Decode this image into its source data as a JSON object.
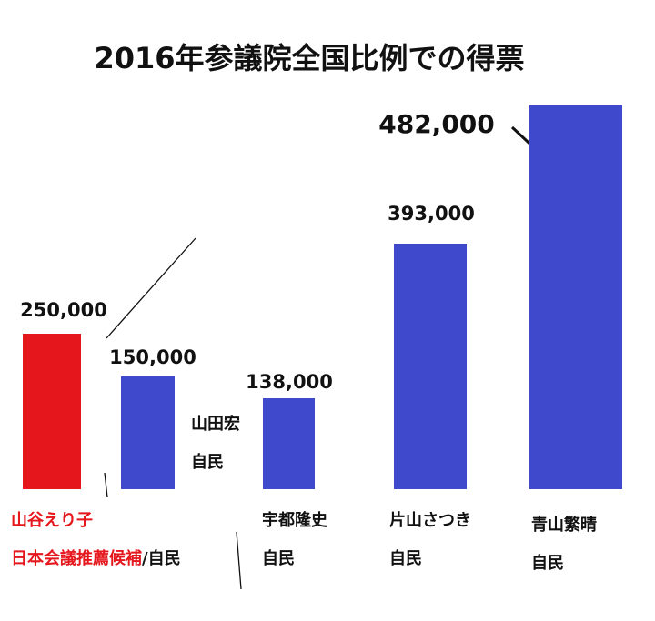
{
  "chart_data": {
    "type": "bar",
    "title": "2016年参議院全国比例での得票",
    "categories": [
      "山谷えり子",
      "山田宏",
      "宇都隆史",
      "片山さつき",
      "青山繁晴"
    ],
    "values": [
      250000,
      150000,
      138000,
      393000,
      482000
    ],
    "value_labels": [
      "250,000",
      "150,000",
      "138,000",
      "393,000",
      "482,000"
    ],
    "party_labels": [
      "日本会議推薦候補",
      "自民",
      "自民",
      "自民",
      "自民"
    ],
    "party_suffix": "/自民",
    "colors": [
      "#e5161c",
      "#3e49cc",
      "#3e49cc",
      "#3e49cc",
      "#3e49cc"
    ],
    "highlight_color": "#e5161c",
    "bar_color": "#3e49cc",
    "xlabel": "",
    "ylabel": "",
    "grid": false,
    "legend": "none"
  }
}
